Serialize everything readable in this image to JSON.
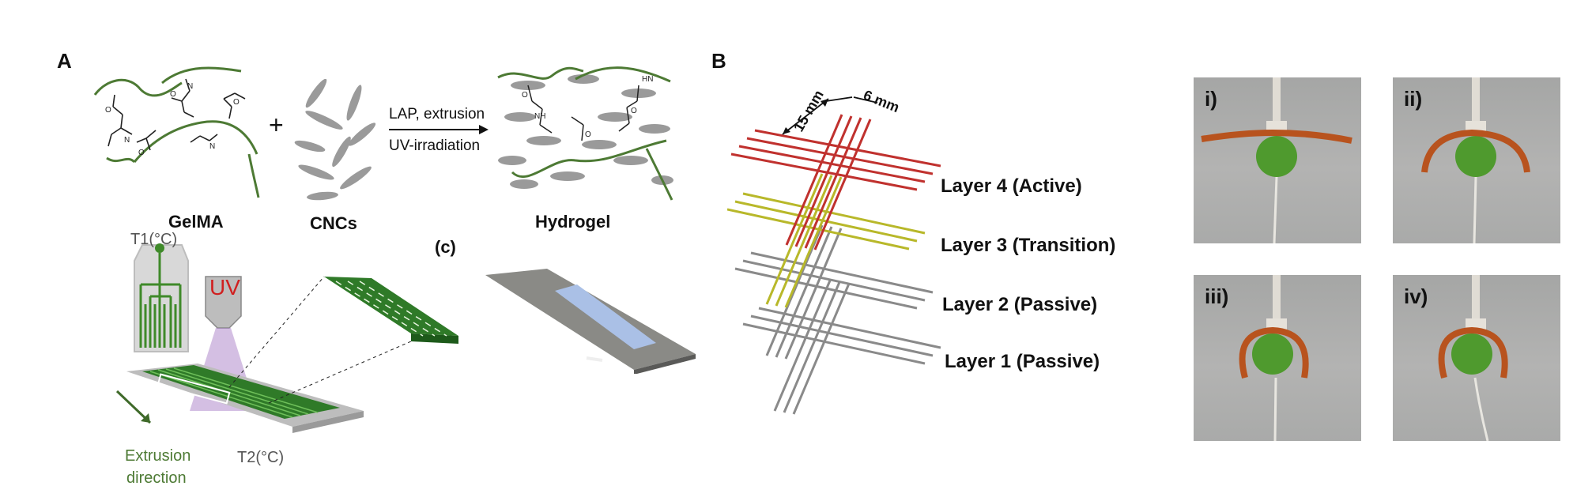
{
  "panel_a": {
    "label": "A",
    "gelma_label": "GelMA",
    "plus": "+",
    "cncs_label": "CNCs",
    "reaction_top": "LAP, extrusion",
    "reaction_bottom": "UV-irradiation",
    "hydrogel_label": "Hydrogel",
    "c_label": "(c)",
    "uv_label": "UV",
    "t1_label": "T1(°C)",
    "t2_label": "T2(°C)",
    "extrusion_label_1": "Extrusion",
    "extrusion_label_2": "direction"
  },
  "panel_b": {
    "label": "B",
    "dim_15": "15 mm",
    "dim_6": "6 mm",
    "layers": [
      "Layer 4 (Active)",
      "Layer 3 (Transition)",
      "Layer 2 (Passive)",
      "Layer 1 (Passive)"
    ],
    "colors": {
      "active": "#c0312e",
      "transition": "#b8b82a",
      "passive": "#8a8a8a"
    }
  },
  "photos": [
    {
      "label": "i)"
    },
    {
      "label": "ii)"
    },
    {
      "label": "iii)"
    },
    {
      "label": "iv)"
    }
  ]
}
